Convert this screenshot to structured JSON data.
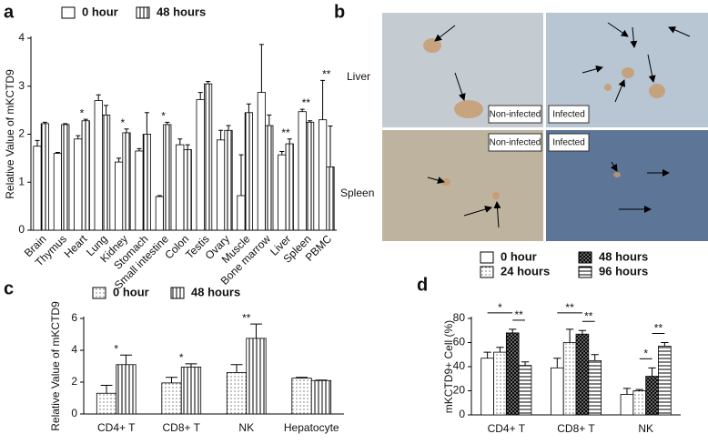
{
  "chart_data": [
    {
      "type": "bar",
      "panel": "a",
      "y_label": "Relative Value of mKCTD9",
      "categories": [
        "Brain",
        "Thymus",
        "Heart",
        "Lung",
        "Kidney",
        "Stomach",
        "Small intestine",
        "Colon",
        "Testis",
        "Ovary",
        "Muscle",
        "Bone marrow",
        "Liver",
        "Spleen",
        "PBMC"
      ],
      "series": [
        {
          "name": "0 hour",
          "color": "#ffffff",
          "pattern": "none",
          "values": [
            1.75,
            1.6,
            1.9,
            2.7,
            1.42,
            1.65,
            0.7,
            1.78,
            2.72,
            1.88,
            0.72,
            2.87,
            1.57,
            2.47,
            2.3
          ],
          "errors": [
            0.12,
            0.02,
            0.07,
            0.12,
            0.08,
            0.05,
            0.02,
            0.12,
            0.15,
            0.2,
            0.85,
            1.0,
            0.07,
            0.05,
            0.82
          ]
        },
        {
          "name": "48 hours",
          "color": "#ffffff",
          "pattern": "vlines",
          "values": [
            2.22,
            2.2,
            2.28,
            2.4,
            2.03,
            2.0,
            2.2,
            1.68,
            3.05,
            2.08,
            2.45,
            2.18,
            1.8,
            2.25,
            1.32
          ],
          "errors": [
            0.03,
            0.02,
            0.03,
            0.2,
            0.08,
            0.45,
            0.05,
            0.1,
            0.05,
            0.1,
            0.18,
            0.22,
            0.1,
            0.03,
            0.85
          ]
        }
      ],
      "significance": [
        null,
        null,
        "*",
        null,
        "*",
        null,
        "*",
        null,
        null,
        null,
        null,
        null,
        "**",
        "**",
        "**"
      ],
      "ylim": [
        0,
        4
      ],
      "yticks": [
        0,
        1,
        2,
        3,
        4
      ]
    },
    {
      "type": "bar",
      "panel": "c",
      "y_label": "Relative Value of mKCTD9",
      "categories": [
        "CD4+ T",
        "CD8+ T",
        "NK",
        "Hepatocyte"
      ],
      "series": [
        {
          "name": "0 hour",
          "color": "#ffffff",
          "pattern": "dots",
          "values": [
            1.3,
            1.95,
            2.6,
            2.25
          ],
          "errors": [
            0.5,
            0.35,
            0.5,
            0.05
          ]
        },
        {
          "name": "48 hours",
          "color": "#ffffff",
          "pattern": "vlines",
          "values": [
            3.1,
            2.95,
            4.75,
            2.1
          ],
          "errors": [
            0.6,
            0.2,
            0.9,
            0.03
          ]
        }
      ],
      "significance": [
        "*",
        "*",
        "**",
        null
      ],
      "ylim": [
        0,
        6
      ],
      "yticks": [
        0,
        2,
        4,
        6
      ]
    },
    {
      "type": "bar",
      "panel": "d",
      "y_label": "mKCTD9+ Cell (%)",
      "categories": [
        "CD4+ T",
        "CD8+ T",
        "NK"
      ],
      "series": [
        {
          "name": "0 hour",
          "color": "#ffffff",
          "pattern": "none",
          "values": [
            47,
            39,
            17
          ],
          "errors": [
            5,
            8,
            5
          ]
        },
        {
          "name": "24 hours",
          "color": "#ffffff",
          "pattern": "dots",
          "values": [
            52,
            60,
            20
          ],
          "errors": [
            4,
            11,
            1
          ]
        },
        {
          "name": "48 hours",
          "color": "#8a8a8a",
          "pattern": "crosshatch",
          "values": [
            68,
            67,
            32
          ],
          "errors": [
            3,
            3,
            7
          ]
        },
        {
          "name": "96 hours",
          "color": "#ffffff",
          "pattern": "hlines",
          "values": [
            41,
            45,
            57
          ],
          "errors": [
            3,
            5,
            3
          ]
        }
      ],
      "brackets": [
        {
          "text": "*",
          "category": "CD4+ T",
          "between": [
            "0 hour",
            "48 hours"
          ]
        },
        {
          "text": "**",
          "category": "CD4+ T",
          "between": [
            "48 hours",
            "96 hours"
          ]
        },
        {
          "text": "**",
          "category": "CD8+ T",
          "between": [
            "0 hour",
            "48 hours"
          ]
        },
        {
          "text": "**",
          "category": "CD8+ T",
          "between": [
            "48 hours",
            "96 hours"
          ]
        },
        {
          "text": "*",
          "category": "NK",
          "between": [
            "24 hours",
            "48 hours"
          ]
        },
        {
          "text": "**",
          "category": "NK",
          "between": [
            "48 hours",
            "96 hours"
          ]
        }
      ],
      "ylim": [
        0,
        80
      ],
      "yticks": [
        0,
        20,
        40,
        60,
        80
      ]
    }
  ],
  "panel_b": {
    "label": "b",
    "row_labels": [
      "Liver",
      "Spleen"
    ],
    "captions": [
      "Non-infected",
      "Infected",
      "Non-infected",
      "Infected"
    ]
  }
}
